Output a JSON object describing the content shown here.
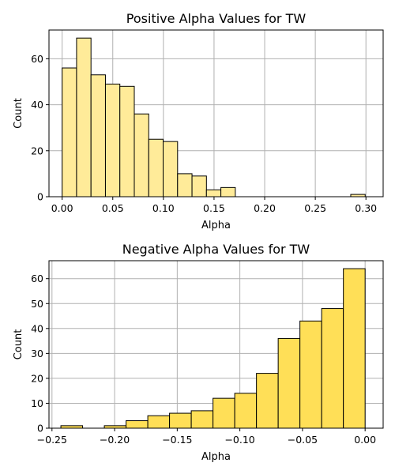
{
  "chart_data": [
    {
      "type": "bar",
      "title": "Positive Alpha Values for TW",
      "xlabel": "Alpha",
      "ylabel": "Count",
      "xlim": [
        -0.013,
        0.317
      ],
      "ylim": [
        0,
        72.5
      ],
      "grid": true,
      "bar_color": "#FFEB99",
      "edge_color": "#000000",
      "xticks": [
        0.0,
        0.05,
        0.1,
        0.15,
        0.2,
        0.25,
        0.3
      ],
      "xtick_labels": [
        "0.00",
        "0.05",
        "0.10",
        "0.15",
        "0.20",
        "0.25",
        "0.30"
      ],
      "yticks": [
        0,
        20,
        40,
        60
      ],
      "ytick_labels": [
        "0",
        "20",
        "40",
        "60"
      ],
      "bin_width": 0.01425,
      "bins": [
        {
          "x0": 0.0,
          "value": 56
        },
        {
          "x0": 0.01425,
          "value": 69
        },
        {
          "x0": 0.0285,
          "value": 53
        },
        {
          "x0": 0.04275,
          "value": 49
        },
        {
          "x0": 0.057,
          "value": 48
        },
        {
          "x0": 0.07125,
          "value": 36
        },
        {
          "x0": 0.0855,
          "value": 25
        },
        {
          "x0": 0.09975,
          "value": 24
        },
        {
          "x0": 0.114,
          "value": 10
        },
        {
          "x0": 0.12825,
          "value": 9
        },
        {
          "x0": 0.1425,
          "value": 3
        },
        {
          "x0": 0.15675,
          "value": 4
        },
        {
          "x0": 0.171,
          "value": 0
        },
        {
          "x0": 0.18525,
          "value": 0
        },
        {
          "x0": 0.1995,
          "value": 0
        },
        {
          "x0": 0.21375,
          "value": 0
        },
        {
          "x0": 0.228,
          "value": 0
        },
        {
          "x0": 0.24225,
          "value": 0
        },
        {
          "x0": 0.2565,
          "value": 0
        },
        {
          "x0": 0.27075,
          "value": 0
        },
        {
          "x0": 0.285,
          "value": 1
        }
      ]
    },
    {
      "type": "bar",
      "title": "Negative Alpha Values for TW",
      "xlabel": "Alpha",
      "ylabel": "Count",
      "xlim": [
        -0.2524,
        0.0144
      ],
      "ylim": [
        0,
        67.2
      ],
      "grid": true,
      "bar_color": "#FFDF57",
      "edge_color": "#000000",
      "xticks": [
        -0.25,
        -0.2,
        -0.15,
        -0.1,
        -0.05,
        0.0
      ],
      "xtick_labels": [
        "−0.25",
        "−0.20",
        "−0.15",
        "−0.10",
        "−0.05",
        "0.00"
      ],
      "yticks": [
        0,
        10,
        20,
        30,
        40,
        50,
        60
      ],
      "ytick_labels": [
        "0",
        "10",
        "20",
        "30",
        "40",
        "50",
        "60"
      ],
      "bin_width": 0.01735,
      "bins": [
        {
          "x0": -0.2429,
          "value": 1
        },
        {
          "x0": -0.22555,
          "value": 0
        },
        {
          "x0": -0.2082,
          "value": 1
        },
        {
          "x0": -0.19085,
          "value": 3
        },
        {
          "x0": -0.1735,
          "value": 5
        },
        {
          "x0": -0.15615,
          "value": 6
        },
        {
          "x0": -0.1388,
          "value": 7
        },
        {
          "x0": -0.12145,
          "value": 12
        },
        {
          "x0": -0.1041,
          "value": 14
        },
        {
          "x0": -0.08675,
          "value": 22
        },
        {
          "x0": -0.0694,
          "value": 36
        },
        {
          "x0": -0.05205,
          "value": 43
        },
        {
          "x0": -0.0347,
          "value": 48
        },
        {
          "x0": -0.01735,
          "value": 64
        }
      ]
    }
  ]
}
